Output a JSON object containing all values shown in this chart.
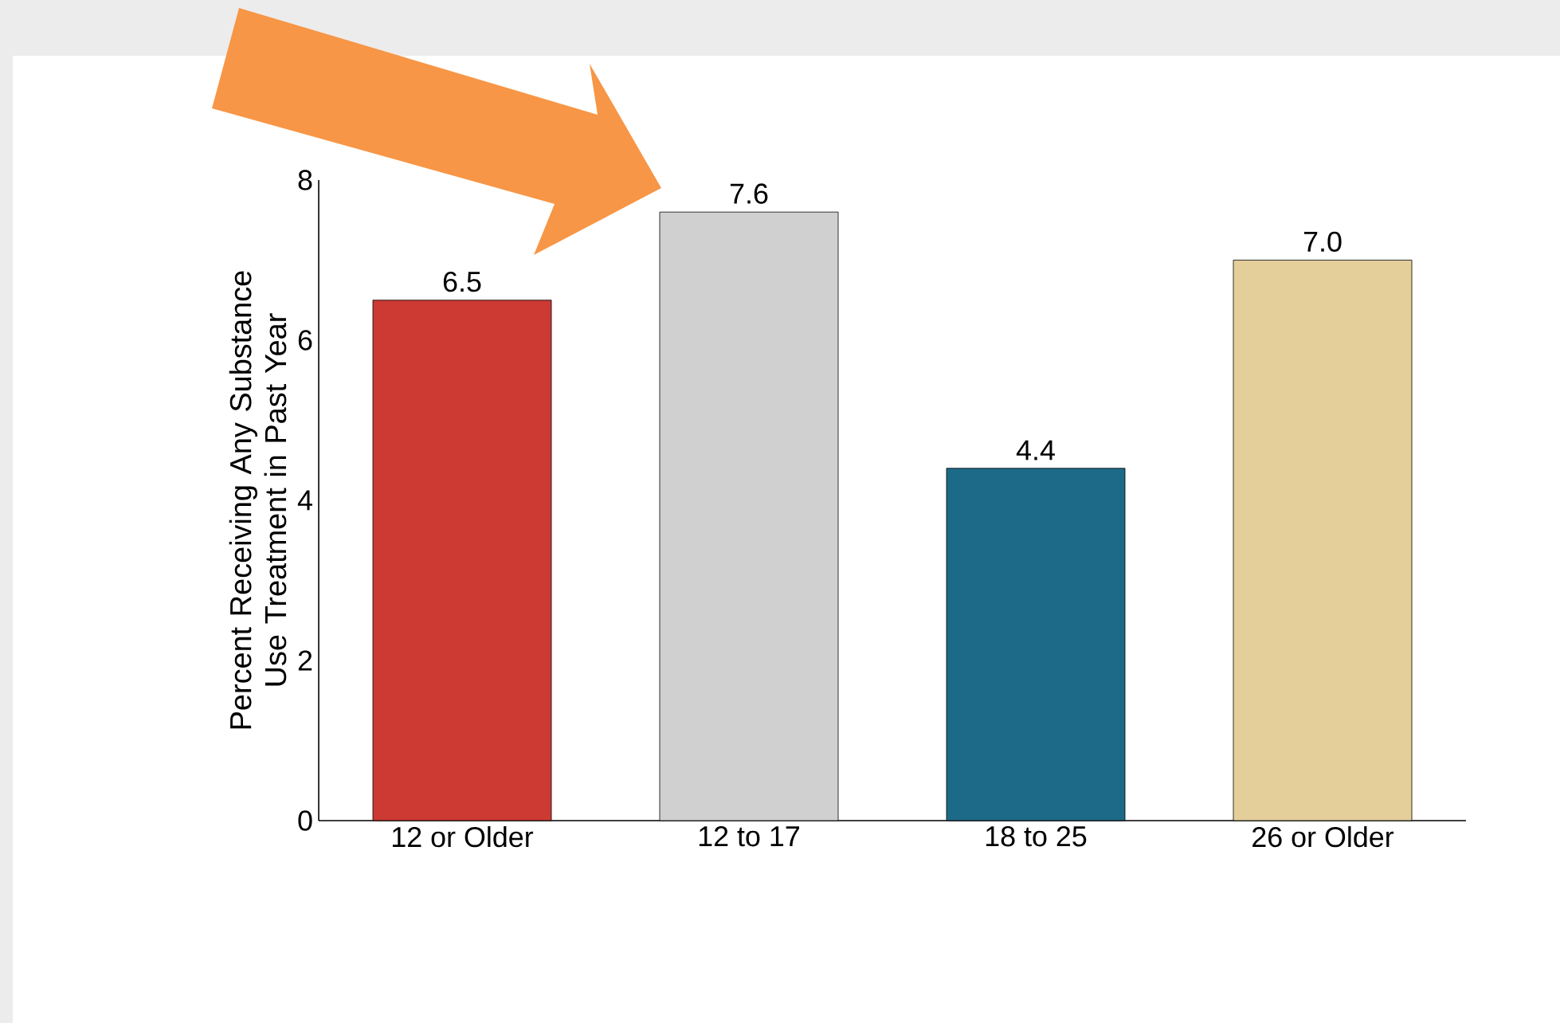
{
  "chart_data": {
    "type": "bar",
    "ylabel": "Percent Receiving Any Substance Use Treatment in Past Year",
    "categories": [
      "12 or Older",
      "12 to 17",
      "18 to 25",
      "26 or Older"
    ],
    "values": [
      6.5,
      7.6,
      4.4,
      7.0
    ],
    "value_labels": [
      "6.5",
      "7.6",
      "4.4",
      "7.0"
    ],
    "colors": [
      "#cc3a33",
      "#d0d0d0",
      "#1d6a88",
      "#e4cf9b"
    ],
    "ylim": [
      0,
      8
    ],
    "yticks": [
      0,
      2,
      4,
      6,
      8
    ],
    "grid": false
  }
}
